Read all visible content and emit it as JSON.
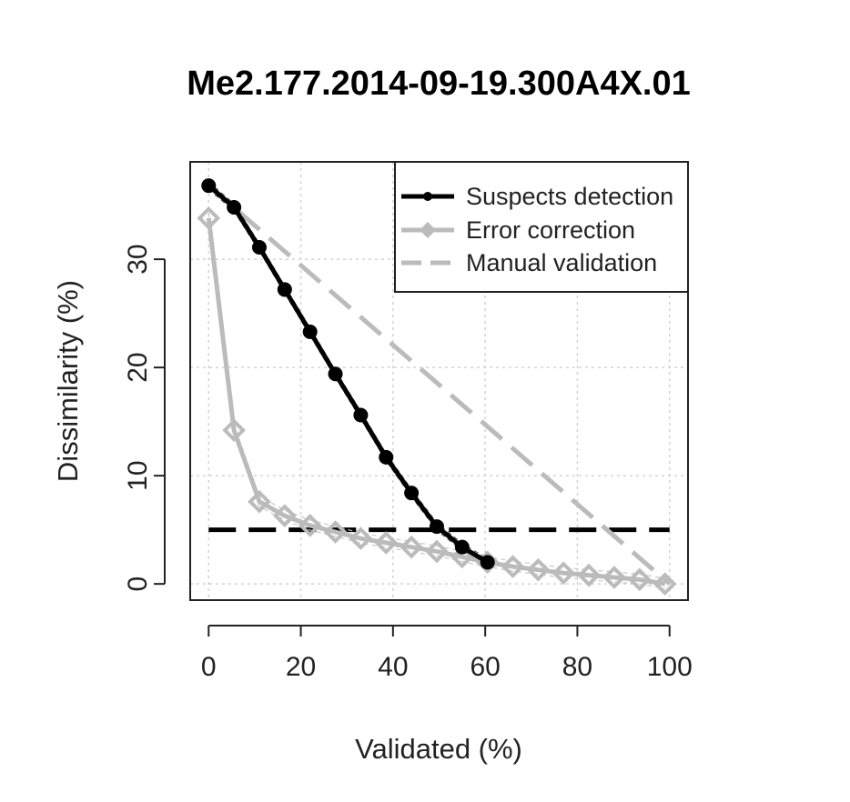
{
  "chart_data": {
    "type": "line",
    "title": "Me2.177.2014-09-19.300A4X.01",
    "xlabel": "Validated (%)",
    "ylabel": "Dissimilarity (%)",
    "xlim": [
      -4,
      104
    ],
    "ylim": [
      -1.5,
      39
    ],
    "xticks": [
      0,
      20,
      40,
      60,
      80,
      100
    ],
    "yticks": [
      0,
      10,
      20,
      30
    ],
    "grid": true,
    "legend_position": "top-right",
    "threshold": 5,
    "series": [
      {
        "name": "Suspects detection",
        "color": "#000000",
        "marker": "circle",
        "x": [
          0,
          5.5,
          11,
          16.5,
          22,
          27.5,
          33,
          38.5,
          44,
          49.5,
          55,
          60.5
        ],
        "y": [
          36.8,
          34.8,
          31.1,
          27.2,
          23.3,
          19.4,
          15.6,
          11.7,
          8.4,
          5.3,
          3.4,
          2.0
        ]
      },
      {
        "name": "Error correction",
        "color": "#bbbbbb",
        "marker": "diamond",
        "x": [
          0,
          5.5,
          11,
          16.5,
          22,
          27.5,
          33,
          38.5,
          44,
          49.5,
          55,
          60.5,
          66,
          71.5,
          77,
          82.5,
          88,
          93.5,
          99
        ],
        "y": [
          33.8,
          14.2,
          7.6,
          6.3,
          5.4,
          4.8,
          4.2,
          3.8,
          3.4,
          3.0,
          2.5,
          2.0,
          1.6,
          1.3,
          1.0,
          0.8,
          0.6,
          0.4,
          0.0
        ]
      },
      {
        "name": "Manual validation",
        "color": "#bbbbbb",
        "style": "dashed",
        "x": [
          0,
          100
        ],
        "y": [
          36.8,
          0
        ]
      }
    ]
  }
}
